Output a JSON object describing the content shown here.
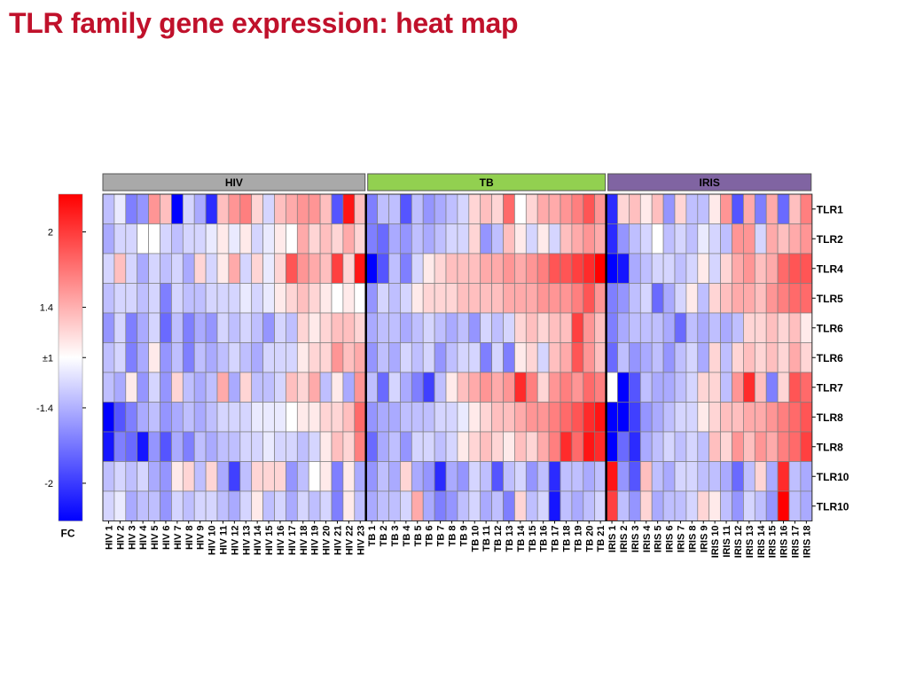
{
  "slide": {
    "title": "TLR family gene expression: heat map"
  },
  "chart_data": {
    "type": "heatmap",
    "title": "",
    "groups": [
      {
        "name": "HIV",
        "color": "#a9a9a9",
        "count": 23
      },
      {
        "name": "TB",
        "color": "#92d050",
        "count": 21
      },
      {
        "name": "IRIS",
        "color": "#8064a2",
        "count": 18
      }
    ],
    "columns": [
      "HIV 1",
      "HIV 2",
      "HIV 3",
      "HIV 4",
      "HIV 5",
      "HIV 6",
      "HIV 7",
      "HIV 8",
      "HIV 9",
      "HIV 10",
      "HIV 11",
      "HIV 12",
      "HIV 13",
      "HIV 14",
      "HIV 15",
      "HIV 16",
      "HIV 17",
      "HIV 18",
      "HIV 19",
      "HIV 20",
      "HIV 21",
      "HIV 22",
      "HIV 23",
      "TB 1",
      "TB 2",
      "TB 3",
      "TB 4",
      "TB 5",
      "TB 6",
      "TB 7",
      "TB 8",
      "TB 9",
      "TB 10",
      "TB 11",
      "TB 12",
      "TB 13",
      "TB 14",
      "TB 15",
      "TB 16",
      "TB 17",
      "TB 18",
      "TB 19",
      "TB 20",
      "TB 21",
      "IRIS 1",
      "IRIS 2",
      "IRIS 3",
      "IRIS 4",
      "IRIS 5",
      "IRIS 6",
      "IRIS 7",
      "IRIS 8",
      "IRIS 9",
      "IRIS 10",
      "IRIS 11",
      "IRIS 12",
      "IRIS 13",
      "IRIS 14",
      "IRIS 15",
      "IRIS 16",
      "IRIS 17",
      "IRIS 18"
    ],
    "rows": [
      "TLR1",
      "TLR2",
      "TLR4",
      "TLR5",
      "TLR6",
      "TLR6",
      "TLR7",
      "TLR8",
      "TLR8",
      "TLR10",
      "TLR10"
    ],
    "values": [
      [
        -1.3,
        -1.1,
        -1.6,
        -1.5,
        1.5,
        1.3,
        -2.3,
        -1.2,
        -1.4,
        -2.0,
        1.3,
        1.5,
        1.6,
        1.2,
        -1.2,
        1.3,
        1.4,
        1.5,
        1.5,
        1.3,
        -1.8,
        2.1,
        1.3,
        -1.6,
        -1.3,
        -1.3,
        -1.8,
        -1.3,
        -1.5,
        -1.4,
        -1.3,
        -1.2,
        1.2,
        1.3,
        1.2,
        1.7,
        1.0,
        1.2,
        1.4,
        1.4,
        1.5,
        1.6,
        1.8,
        1.5,
        -2.0,
        1.2,
        1.3,
        1.1,
        1.3,
        -1.5,
        1.2,
        -1.3,
        -1.3,
        1.1,
        1.5,
        -1.8,
        1.4,
        -1.6,
        1.4,
        -1.7,
        1.3,
        1.6
      ],
      [
        -1.4,
        -1.2,
        -1.2,
        1.0,
        1.0,
        -1.2,
        -1.3,
        -1.2,
        -1.2,
        -1.1,
        1.1,
        -1.1,
        1.1,
        -1.2,
        -1.1,
        1.1,
        1.0,
        1.4,
        1.2,
        1.3,
        1.2,
        1.4,
        1.2,
        -1.6,
        -1.7,
        -1.4,
        -1.5,
        -1.3,
        -1.4,
        -1.3,
        -1.2,
        -1.2,
        1.2,
        -1.5,
        -1.3,
        1.3,
        1.1,
        -1.2,
        1.1,
        -1.2,
        1.3,
        1.4,
        1.5,
        1.4,
        -2.0,
        -1.5,
        -1.3,
        -1.2,
        1.0,
        -1.3,
        -1.2,
        -1.3,
        -1.1,
        -1.2,
        -1.3,
        1.5,
        1.5,
        -1.2,
        1.4,
        1.3,
        1.4,
        1.5
      ],
      [
        -1.2,
        1.3,
        -1.2,
        -1.4,
        -1.2,
        -1.3,
        -1.2,
        -1.4,
        1.2,
        -1.2,
        1.1,
        1.4,
        -1.2,
        1.2,
        -1.1,
        1.2,
        1.8,
        1.5,
        1.4,
        1.3,
        1.9,
        1.2,
        2.1,
        -2.3,
        -1.8,
        -1.3,
        -1.6,
        -1.2,
        1.1,
        1.2,
        1.3,
        1.3,
        1.3,
        1.4,
        1.4,
        1.5,
        1.4,
        1.5,
        1.6,
        1.8,
        1.8,
        1.9,
        2.0,
        2.2,
        -2.3,
        -2.1,
        -1.4,
        -1.3,
        -1.2,
        -1.2,
        -1.3,
        -1.2,
        1.1,
        -1.2,
        1.2,
        1.4,
        1.5,
        1.3,
        1.4,
        1.7,
        1.8,
        1.8
      ],
      [
        -1.3,
        -1.2,
        -1.2,
        -1.3,
        -1.2,
        -1.6,
        -1.2,
        -1.3,
        -1.3,
        -1.2,
        -1.2,
        -1.2,
        -1.1,
        -1.2,
        -1.1,
        1.1,
        1.2,
        1.3,
        1.2,
        1.1,
        1.0,
        1.1,
        1.0,
        -1.5,
        -1.2,
        -1.3,
        -1.2,
        1.1,
        1.2,
        1.2,
        1.2,
        1.3,
        1.3,
        1.3,
        1.3,
        1.4,
        1.4,
        1.4,
        1.5,
        1.5,
        1.5,
        1.6,
        1.8,
        1.5,
        -1.6,
        -1.5,
        -1.3,
        -1.2,
        -1.7,
        -1.4,
        -1.2,
        1.1,
        -1.3,
        1.2,
        1.3,
        1.4,
        1.4,
        1.3,
        1.5,
        1.6,
        1.7,
        1.7
      ],
      [
        -1.5,
        -1.2,
        -1.6,
        -1.4,
        -1.2,
        -1.7,
        -1.3,
        -1.6,
        -1.4,
        -1.5,
        -1.2,
        -1.3,
        -1.2,
        -1.3,
        -1.5,
        -1.2,
        -1.3,
        1.2,
        1.1,
        1.2,
        1.3,
        1.3,
        1.2,
        -1.4,
        -1.3,
        -1.3,
        -1.4,
        -1.3,
        -1.2,
        -1.3,
        -1.4,
        -1.3,
        -1.5,
        -1.2,
        -1.3,
        -1.2,
        1.2,
        1.3,
        1.2,
        1.3,
        1.3,
        1.9,
        1.5,
        1.3,
        -1.6,
        -1.4,
        -1.3,
        -1.3,
        -1.3,
        -1.4,
        -1.7,
        -1.3,
        -1.4,
        -1.3,
        -1.4,
        -1.3,
        1.2,
        1.2,
        1.3,
        1.2,
        1.3,
        1.1
      ],
      [
        -1.3,
        -1.2,
        -1.6,
        -1.4,
        1.1,
        -1.5,
        -1.3,
        -1.6,
        -1.3,
        -1.4,
        -1.3,
        -1.2,
        -1.3,
        -1.4,
        -1.2,
        -1.2,
        -1.2,
        1.1,
        1.2,
        1.2,
        1.5,
        1.3,
        1.4,
        -1.5,
        -1.3,
        -1.4,
        -1.2,
        -1.3,
        -1.2,
        -1.5,
        -1.3,
        -1.2,
        -1.2,
        -1.6,
        -1.2,
        -1.6,
        1.1,
        1.2,
        -1.2,
        1.3,
        1.4,
        1.8,
        1.5,
        1.3,
        -1.7,
        -1.3,
        -1.5,
        -1.4,
        -1.3,
        -1.5,
        -1.3,
        -1.2,
        -1.4,
        1.2,
        -1.3,
        1.2,
        1.3,
        1.2,
        1.3,
        1.2,
        1.4,
        1.2
      ],
      [
        -1.3,
        -1.4,
        1.1,
        -1.5,
        -1.2,
        -1.5,
        1.2,
        -1.3,
        -1.4,
        -1.3,
        1.4,
        -1.4,
        1.2,
        -1.3,
        -1.3,
        -1.2,
        1.3,
        1.2,
        1.4,
        -1.3,
        1.1,
        -1.4,
        1.5,
        -1.3,
        -1.7,
        -1.2,
        -1.4,
        -1.6,
        -1.9,
        -1.3,
        1.1,
        1.3,
        1.4,
        1.5,
        1.4,
        1.5,
        2.0,
        1.6,
        1.2,
        1.5,
        1.6,
        1.5,
        1.7,
        1.6,
        1.0,
        -2.2,
        -1.8,
        -1.3,
        -1.4,
        -1.4,
        -1.3,
        -1.2,
        1.2,
        1.2,
        -1.3,
        1.5,
        2.0,
        1.3,
        -1.6,
        1.2,
        1.8,
        1.7
      ],
      [
        -2.2,
        -1.8,
        -1.6,
        -1.4,
        -1.3,
        -1.5,
        -1.4,
        -1.3,
        -1.4,
        -1.3,
        -1.2,
        -1.2,
        -1.2,
        -1.1,
        -1.1,
        -1.1,
        1.0,
        1.1,
        1.1,
        1.2,
        1.2,
        1.3,
        1.7,
        -1.5,
        -1.4,
        -1.4,
        -1.3,
        -1.3,
        -1.3,
        -1.2,
        -1.2,
        -1.1,
        1.1,
        1.2,
        1.3,
        1.3,
        1.4,
        1.5,
        1.5,
        1.6,
        1.7,
        1.8,
        2.0,
        2.1,
        -2.3,
        -2.2,
        -1.9,
        -1.5,
        -1.4,
        -1.3,
        -1.2,
        -1.2,
        1.1,
        1.2,
        1.3,
        1.3,
        1.4,
        1.4,
        1.5,
        1.6,
        1.7,
        1.8
      ],
      [
        -2.1,
        -1.6,
        -1.7,
        -2.1,
        -1.5,
        -1.8,
        -1.4,
        -1.6,
        -1.3,
        -1.4,
        -1.3,
        -1.3,
        -1.2,
        -1.2,
        -1.1,
        -1.2,
        -1.2,
        -1.3,
        -1.2,
        1.1,
        1.3,
        1.2,
        1.6,
        -1.7,
        -1.4,
        -1.3,
        -1.5,
        -1.2,
        -1.2,
        -1.3,
        -1.2,
        1.1,
        1.2,
        1.3,
        1.2,
        1.1,
        1.3,
        1.2,
        1.4,
        1.6,
        2.0,
        1.7,
        2.1,
        2.0,
        -2.3,
        -1.7,
        -2.0,
        -1.4,
        -1.3,
        -1.2,
        -1.3,
        -1.2,
        -1.3,
        1.3,
        1.2,
        1.5,
        1.3,
        1.5,
        1.4,
        1.6,
        1.7,
        1.9
      ],
      [
        -1.3,
        -1.2,
        -1.3,
        -1.2,
        -1.4,
        -1.5,
        1.1,
        1.2,
        -1.3,
        1.2,
        -1.4,
        -1.9,
        -1.3,
        1.2,
        1.2,
        1.2,
        -1.5,
        -1.3,
        1.0,
        1.1,
        -1.6,
        1.1,
        -1.4,
        -1.5,
        -1.3,
        -1.4,
        1.2,
        -1.4,
        -1.5,
        -2.0,
        -1.4,
        -1.5,
        -1.2,
        -1.3,
        -1.8,
        -1.3,
        -1.2,
        -1.5,
        -1.3,
        -2.0,
        -1.3,
        -1.3,
        -1.4,
        -1.3,
        2.1,
        -1.5,
        -1.8,
        1.3,
        -1.3,
        -1.4,
        -1.2,
        -1.2,
        -1.3,
        -1.3,
        -1.4,
        -1.7,
        -1.3,
        1.2,
        -1.4,
        2.0,
        -1.3,
        -1.4
      ],
      [
        -1.2,
        -1.1,
        -1.4,
        -1.3,
        -1.3,
        -1.5,
        -1.2,
        -1.3,
        -1.2,
        -1.2,
        -1.3,
        -1.4,
        -1.2,
        1.1,
        -1.3,
        -1.2,
        -1.4,
        -1.2,
        -1.3,
        -1.2,
        -1.6,
        1.1,
        -1.3,
        -1.4,
        -1.3,
        -1.3,
        -1.2,
        1.4,
        -1.4,
        -1.6,
        -1.5,
        -1.3,
        -1.2,
        -1.4,
        -1.3,
        -1.6,
        1.2,
        -1.3,
        -1.2,
        -2.1,
        -1.3,
        -1.4,
        -1.3,
        -1.2,
        1.9,
        -1.3,
        -1.5,
        1.2,
        -1.4,
        -1.3,
        -1.3,
        -1.2,
        1.2,
        1.1,
        -1.3,
        -1.5,
        -1.2,
        -1.3,
        -1.5,
        2.2,
        -1.3,
        -1.4
      ]
    ],
    "legend": {
      "title": "FC",
      "ticks": [
        "2",
        "1.4",
        "±1",
        "-1.4",
        "-2"
      ],
      "tick_values": [
        2,
        1.4,
        1,
        -1.4,
        -2
      ],
      "max_color": "#ff0000",
      "mid_color": "#ffffff",
      "min_color": "#0000ff"
    }
  }
}
